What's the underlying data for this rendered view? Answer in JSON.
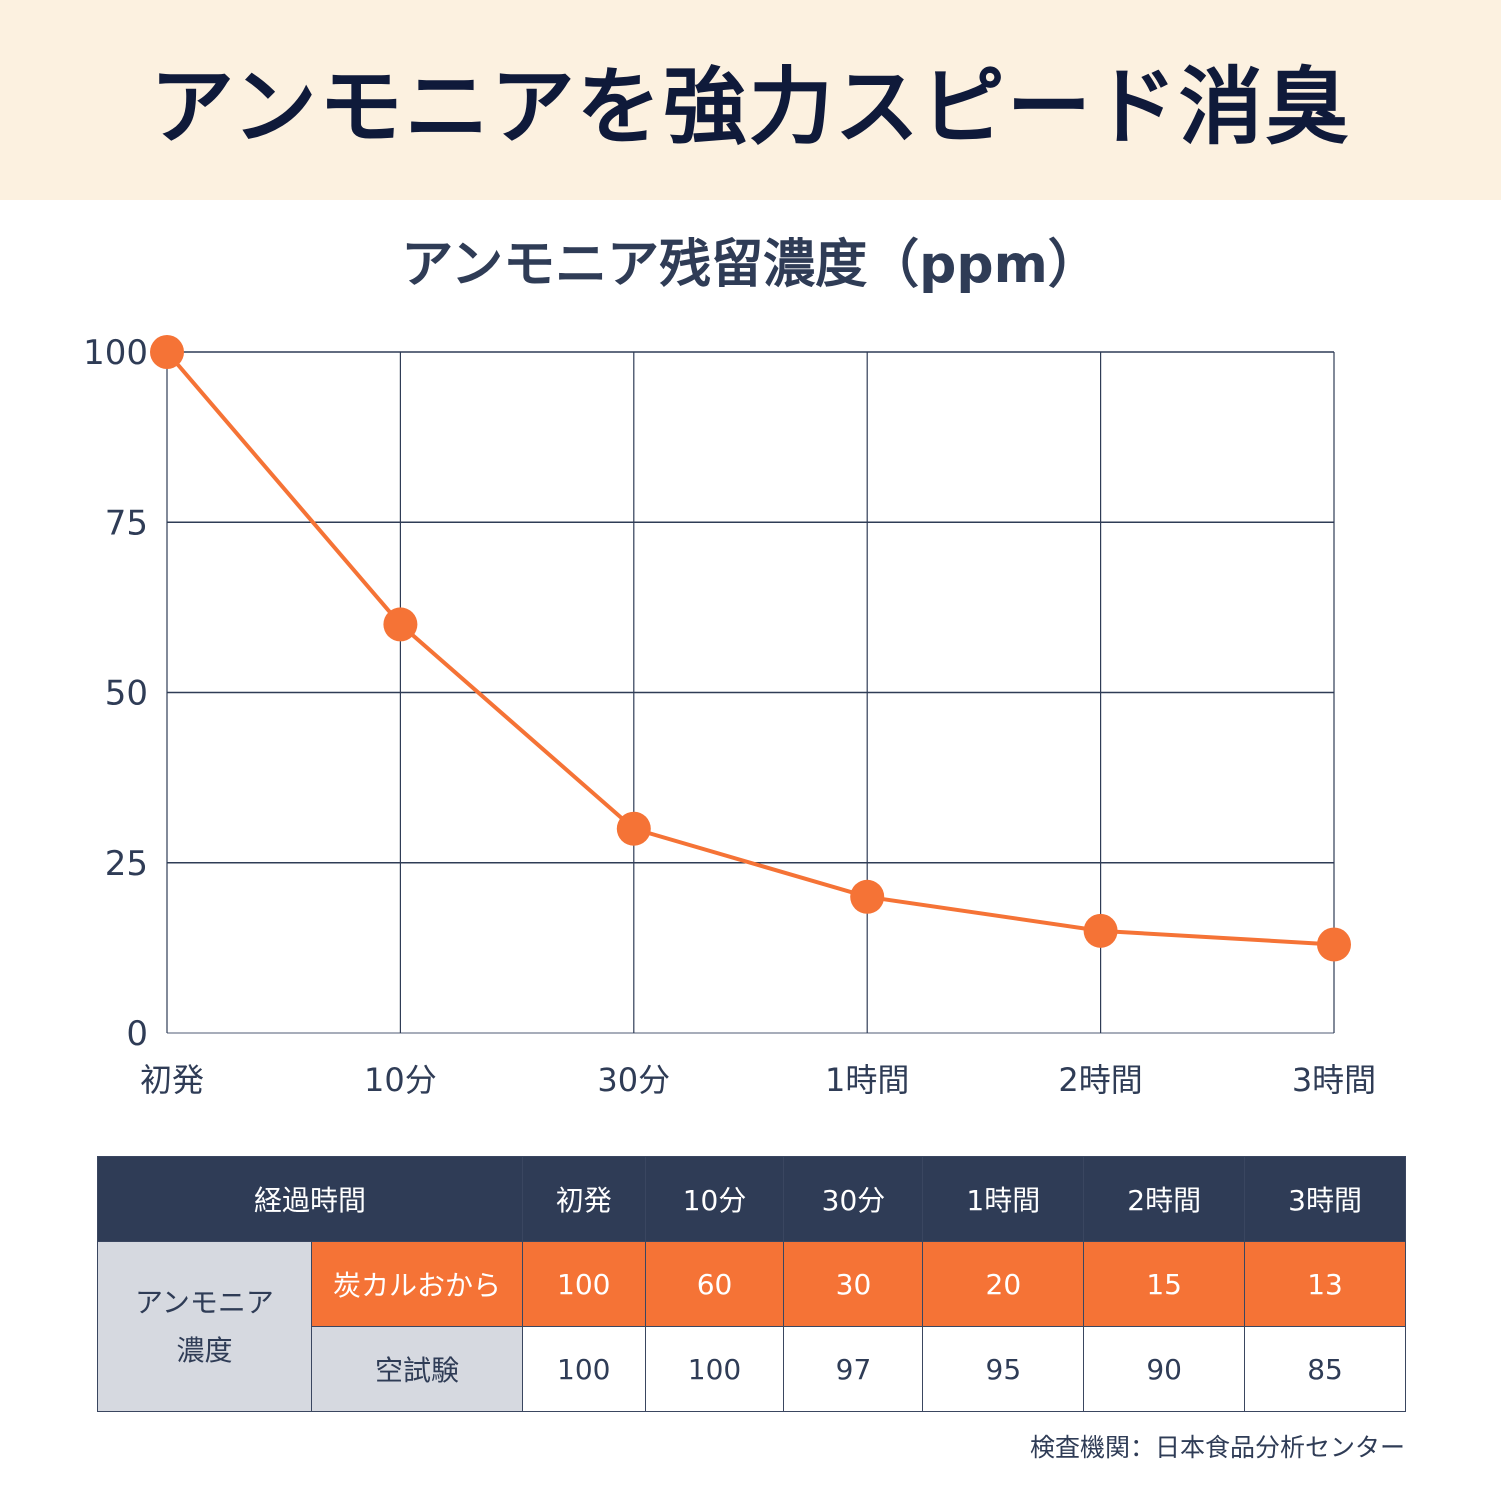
{
  "banner": {
    "title": "アンモニアを強力スピード消臭"
  },
  "chart_data": {
    "type": "line",
    "title": "アンモニア残留濃度（ppm）",
    "xlabel": "",
    "ylabel": "",
    "categories": [
      "初発",
      "10分",
      "30分",
      "1時間",
      "2時間",
      "3時間"
    ],
    "series": [
      {
        "name": "炭カルおから",
        "values": [
          100,
          60,
          30,
          20,
          15,
          13
        ],
        "color": "#f57336"
      }
    ],
    "yticks": [
      "0",
      "25",
      "50",
      "75",
      "100"
    ],
    "ylim": [
      0,
      100
    ],
    "grid": true,
    "legend": "none"
  },
  "table": {
    "header_label": "経過時間",
    "columns": [
      "初発",
      "10分",
      "30分",
      "1時間",
      "2時間",
      "3時間"
    ],
    "group_label_line1": "アンモニア",
    "group_label_line2": "濃度",
    "rows": [
      {
        "label": "炭カルおから",
        "values": [
          "100",
          "60",
          "30",
          "20",
          "15",
          "13"
        ]
      },
      {
        "label": "空試験",
        "values": [
          "100",
          "100",
          "97",
          "95",
          "90",
          "85"
        ]
      }
    ]
  },
  "source": "検査機関：日本食品分析センター",
  "colors": {
    "accent": "#f57336",
    "navy": "#2f3c56",
    "banner_bg": "#fcf1e0",
    "grey_cell": "#d6d9e0"
  }
}
